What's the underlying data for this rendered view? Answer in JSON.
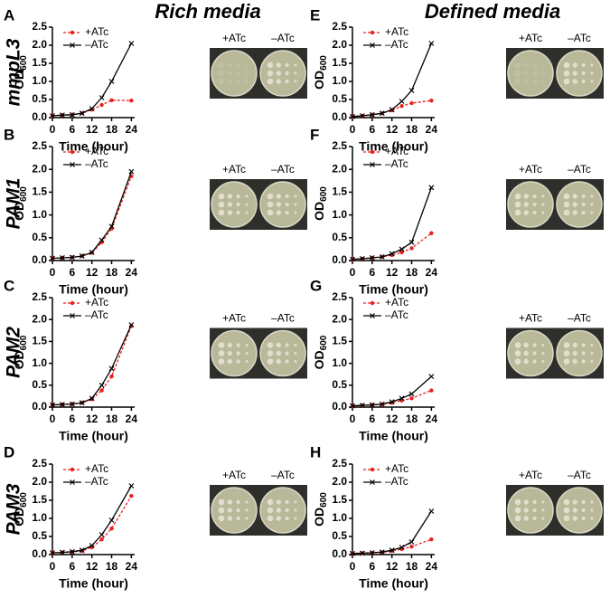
{
  "column_titles": [
    "Rich media",
    "Defined media"
  ],
  "row_labels": [
    "mmpL3",
    "PAM1",
    "PAM2",
    "PAM3"
  ],
  "chart_data": [
    {
      "type": "line",
      "panel": "A",
      "plate_labels": [
        "+ATc",
        "–ATc"
      ],
      "x_label": "Time (hour)",
      "y_label": [
        "OD",
        "600"
      ],
      "xlim": [
        0,
        25
      ],
      "xticks": [
        0,
        6,
        12,
        18,
        24
      ],
      "ylim": [
        0,
        2.5
      ],
      "yticks": [
        {
          "value": 0,
          "label": "0.0"
        },
        0.5,
        {
          "value": 1,
          "label": "1.0"
        },
        1.5,
        {
          "value": 2,
          "label": "2.0"
        },
        2.5
      ],
      "x": [
        0,
        3,
        6,
        9,
        12,
        15,
        18,
        24
      ],
      "series": [
        {
          "name": "+ATc",
          "color": "#e8231f",
          "dash": true,
          "marker": "circle",
          "values": [
            0.05,
            0.07,
            0.08,
            0.12,
            0.22,
            0.35,
            0.48,
            0.47
          ]
        },
        {
          "name": "–ATc",
          "color": "#000000",
          "dash": false,
          "marker": "x",
          "values": [
            0.05,
            0.07,
            0.08,
            0.12,
            0.25,
            0.55,
            1.0,
            2.05
          ]
        }
      ]
    },
    {
      "type": "line",
      "panel": "B",
      "plate_labels": [
        "+ATc",
        "–ATc"
      ],
      "x_label": "Time (hour)",
      "y_label": [
        "OD",
        "600"
      ],
      "xlim": [
        0,
        25
      ],
      "xticks": [
        0,
        6,
        12,
        18,
        24
      ],
      "ylim": [
        0,
        2.5
      ],
      "yticks": [
        {
          "value": 0,
          "label": "0.0"
        },
        0.5,
        {
          "value": 1,
          "label": "1.0"
        },
        1.5,
        {
          "value": 2,
          "label": "2.0"
        },
        2.5
      ],
      "x": [
        0,
        3,
        6,
        9,
        12,
        15,
        18,
        24
      ],
      "series": [
        {
          "name": "+ATc",
          "color": "#e8231f",
          "dash": true,
          "marker": "circle",
          "values": [
            0.05,
            0.06,
            0.07,
            0.1,
            0.17,
            0.4,
            0.7,
            1.85
          ]
        },
        {
          "name": "–ATc",
          "color": "#000000",
          "dash": false,
          "marker": "x",
          "values": [
            0.05,
            0.06,
            0.07,
            0.1,
            0.18,
            0.45,
            0.75,
            1.95
          ]
        }
      ]
    },
    {
      "type": "line",
      "panel": "C",
      "plate_labels": [
        "+ATc",
        "–ATc"
      ],
      "x_label": "Time (hour)",
      "y_label": [
        "OD",
        "600"
      ],
      "xlim": [
        0,
        25
      ],
      "xticks": [
        0,
        6,
        12,
        18,
        24
      ],
      "ylim": [
        0,
        2.5
      ],
      "yticks": [
        {
          "value": 0,
          "label": "0.0"
        },
        0.5,
        {
          "value": 1,
          "label": "1.0"
        },
        1.5,
        {
          "value": 2,
          "label": "2.0"
        },
        2.5
      ],
      "x": [
        0,
        3,
        6,
        9,
        12,
        15,
        18,
        24
      ],
      "series": [
        {
          "name": "+ATc",
          "color": "#e8231f",
          "dash": true,
          "marker": "circle",
          "values": [
            0.05,
            0.06,
            0.07,
            0.1,
            0.18,
            0.38,
            0.7,
            1.85
          ]
        },
        {
          "name": "–ATc",
          "color": "#000000",
          "dash": false,
          "marker": "x",
          "values": [
            0.05,
            0.06,
            0.07,
            0.1,
            0.2,
            0.5,
            0.88,
            1.88
          ]
        }
      ]
    },
    {
      "type": "line",
      "panel": "D",
      "plate_labels": [
        "+ATc",
        "–ATc"
      ],
      "x_label": "Time (hour)",
      "y_label": [
        "OD",
        "600"
      ],
      "xlim": [
        0,
        25
      ],
      "xticks": [
        0,
        6,
        12,
        18,
        24
      ],
      "ylim": [
        0,
        2.5
      ],
      "yticks": [
        {
          "value": 0,
          "label": "0.0"
        },
        0.5,
        {
          "value": 1,
          "label": "1.0"
        },
        1.5,
        {
          "value": 2,
          "label": "2.0"
        },
        2.5
      ],
      "x": [
        0,
        3,
        6,
        9,
        12,
        15,
        18,
        24
      ],
      "series": [
        {
          "name": "+ATc",
          "color": "#e8231f",
          "dash": true,
          "marker": "circle",
          "values": [
            0.05,
            0.06,
            0.07,
            0.1,
            0.2,
            0.42,
            0.72,
            1.62
          ]
        },
        {
          "name": "–ATc",
          "color": "#000000",
          "dash": false,
          "marker": "x",
          "values": [
            0.05,
            0.06,
            0.08,
            0.12,
            0.25,
            0.55,
            0.95,
            1.9
          ]
        }
      ]
    },
    {
      "type": "line",
      "panel": "E",
      "plate_labels": [
        "+ATc",
        "–ATc"
      ],
      "x_label": "Time (hour)",
      "y_label": [
        "OD",
        "600"
      ],
      "xlim": [
        0,
        25
      ],
      "xticks": [
        0,
        6,
        12,
        18,
        24
      ],
      "ylim": [
        0,
        2.5
      ],
      "yticks": [
        {
          "value": 0,
          "label": "0.0"
        },
        0.5,
        {
          "value": 1,
          "label": "1.0"
        },
        1.5,
        {
          "value": 2,
          "label": "2.0"
        },
        2.5
      ],
      "x": [
        0,
        3,
        6,
        9,
        12,
        15,
        18,
        24
      ],
      "series": [
        {
          "name": "+ATc",
          "color": "#e8231f",
          "dash": true,
          "marker": "circle",
          "values": [
            0.03,
            0.05,
            0.08,
            0.12,
            0.2,
            0.32,
            0.4,
            0.47
          ]
        },
        {
          "name": "–ATc",
          "color": "#000000",
          "dash": false,
          "marker": "x",
          "values": [
            0.03,
            0.05,
            0.08,
            0.12,
            0.22,
            0.45,
            0.75,
            2.05
          ]
        }
      ]
    },
    {
      "type": "line",
      "panel": "F",
      "plate_labels": [
        "+ATc",
        "–ATc"
      ],
      "x_label": "Time (hour)",
      "y_label": [
        "OD",
        "600"
      ],
      "xlim": [
        0,
        25
      ],
      "xticks": [
        0,
        6,
        12,
        18,
        24
      ],
      "ylim": [
        0,
        2.5
      ],
      "yticks": [
        {
          "value": 0,
          "label": "0.0"
        },
        0.5,
        {
          "value": 1,
          "label": "1.0"
        },
        1.5,
        {
          "value": 2,
          "label": "2.0"
        },
        2.5
      ],
      "x": [
        0,
        3,
        6,
        9,
        12,
        15,
        18,
        24
      ],
      "series": [
        {
          "name": "+ATc",
          "color": "#e8231f",
          "dash": true,
          "marker": "circle",
          "values": [
            0.03,
            0.04,
            0.06,
            0.08,
            0.12,
            0.18,
            0.27,
            0.6
          ]
        },
        {
          "name": "–ATc",
          "color": "#000000",
          "dash": false,
          "marker": "x",
          "values": [
            0.03,
            0.04,
            0.06,
            0.08,
            0.15,
            0.25,
            0.4,
            1.6
          ]
        }
      ]
    },
    {
      "type": "line",
      "panel": "G",
      "plate_labels": [
        "+ATc",
        "–ATc"
      ],
      "x_label": "Time (hour)",
      "y_label": [
        "OD",
        "600"
      ],
      "xlim": [
        0,
        25
      ],
      "xticks": [
        0,
        6,
        12,
        18,
        24
      ],
      "ylim": [
        0,
        2.5
      ],
      "yticks": [
        {
          "value": 0,
          "label": "0.0"
        },
        0.5,
        {
          "value": 1,
          "label": "1.0"
        },
        1.5,
        {
          "value": 2,
          "label": "2.0"
        },
        2.5
      ],
      "x": [
        0,
        3,
        6,
        9,
        12,
        15,
        18,
        24
      ],
      "series": [
        {
          "name": "+ATc",
          "color": "#e8231f",
          "dash": true,
          "marker": "circle",
          "values": [
            0.03,
            0.04,
            0.05,
            0.06,
            0.1,
            0.15,
            0.2,
            0.38
          ]
        },
        {
          "name": "–ATc",
          "color": "#000000",
          "dash": false,
          "marker": "x",
          "values": [
            0.03,
            0.04,
            0.05,
            0.07,
            0.12,
            0.2,
            0.3,
            0.7
          ]
        }
      ]
    },
    {
      "type": "line",
      "panel": "H",
      "plate_labels": [
        "+ATc",
        "–ATc"
      ],
      "x_label": "Time (hour)",
      "y_label": [
        "OD",
        "600"
      ],
      "xlim": [
        0,
        25
      ],
      "xticks": [
        0,
        6,
        12,
        18,
        24
      ],
      "ylim": [
        0,
        2.5
      ],
      "yticks": [
        {
          "value": 0,
          "label": "0.0"
        },
        0.5,
        {
          "value": 1,
          "label": "1.0"
        },
        1.5,
        {
          "value": 2,
          "label": "2.0"
        },
        2.5
      ],
      "x": [
        0,
        3,
        6,
        9,
        12,
        15,
        18,
        24
      ],
      "series": [
        {
          "name": "+ATc",
          "color": "#e8231f",
          "dash": true,
          "marker": "circle",
          "values": [
            0.03,
            0.04,
            0.05,
            0.06,
            0.1,
            0.15,
            0.22,
            0.42
          ]
        },
        {
          "name": "–ATc",
          "color": "#000000",
          "dash": false,
          "marker": "x",
          "values": [
            0.03,
            0.04,
            0.05,
            0.07,
            0.12,
            0.2,
            0.35,
            1.2
          ]
        }
      ]
    }
  ]
}
